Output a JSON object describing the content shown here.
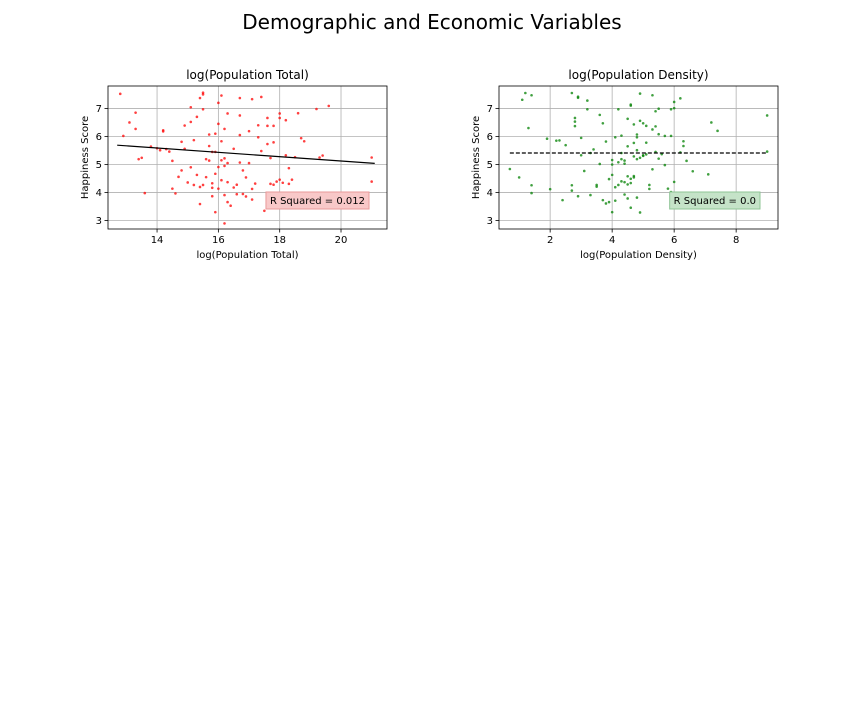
{
  "figure": {
    "title": "Demographic and Economic Variables"
  },
  "chart_data": [
    {
      "type": "scatter",
      "title": "log(Population Total)",
      "xlabel": "log(Population Total)",
      "ylabel": "Happiness Score",
      "xlim": [
        12.4,
        21.5
      ],
      "ylim": [
        2.7,
        7.8
      ],
      "xticks": [
        14,
        16,
        18,
        20
      ],
      "yticks": [
        3,
        4,
        5,
        6,
        7
      ],
      "grid": true,
      "point_color": "#ff0000",
      "fit_style": "solid",
      "fit_line": {
        "x": [
          12.7,
          21.1
        ],
        "y": [
          5.69,
          5.04
        ]
      },
      "annotation": {
        "text": "R Squared = 0.012",
        "facecolor": "#f8c8c8",
        "edgecolor": "#e89a9a",
        "location": "lower-right"
      },
      "points": [
        [
          12.8,
          7.52
        ],
        [
          12.9,
          6.02
        ],
        [
          13.1,
          6.5
        ],
        [
          13.3,
          6.85
        ],
        [
          13.3,
          6.27
        ],
        [
          13.4,
          5.19
        ],
        [
          13.5,
          5.24
        ],
        [
          13.6,
          3.98
        ],
        [
          13.8,
          5.64
        ],
        [
          14.0,
          5.58
        ],
        [
          14.1,
          5.51
        ],
        [
          14.2,
          6.18
        ],
        [
          14.2,
          6.22
        ],
        [
          14.3,
          5.55
        ],
        [
          14.4,
          5.46
        ],
        [
          14.5,
          5.13
        ],
        [
          14.5,
          4.14
        ],
        [
          14.6,
          3.97
        ],
        [
          14.7,
          4.56
        ],
        [
          14.8,
          4.79
        ],
        [
          14.8,
          5.81
        ],
        [
          14.9,
          6.39
        ],
        [
          14.9,
          5.56
        ],
        [
          15.0,
          4.36
        ],
        [
          15.1,
          4.9
        ],
        [
          15.1,
          7.04
        ],
        [
          15.1,
          6.52
        ],
        [
          15.2,
          4.27
        ],
        [
          15.2,
          5.87
        ],
        [
          15.3,
          6.7
        ],
        [
          15.3,
          4.63
        ],
        [
          15.4,
          4.2
        ],
        [
          15.4,
          3.59
        ],
        [
          15.4,
          7.37
        ],
        [
          15.5,
          7.5
        ],
        [
          15.5,
          7.56
        ],
        [
          15.5,
          6.97
        ],
        [
          15.5,
          4.27
        ],
        [
          15.6,
          4.55
        ],
        [
          15.6,
          5.19
        ],
        [
          15.7,
          5.66
        ],
        [
          15.7,
          6.07
        ],
        [
          15.7,
          5.14
        ],
        [
          15.8,
          3.87
        ],
        [
          15.8,
          4.33
        ],
        [
          15.8,
          5.45
        ],
        [
          15.8,
          4.17
        ],
        [
          15.9,
          6.1
        ],
        [
          15.9,
          4.67
        ],
        [
          15.9,
          5.45
        ],
        [
          15.9,
          3.3
        ],
        [
          16.0,
          7.2
        ],
        [
          16.0,
          6.45
        ],
        [
          16.0,
          4.91
        ],
        [
          16.0,
          4.14
        ],
        [
          16.1,
          7.46
        ],
        [
          16.1,
          5.83
        ],
        [
          16.1,
          5.15
        ],
        [
          16.1,
          4.44
        ],
        [
          16.2,
          6.27
        ],
        [
          16.2,
          5.22
        ],
        [
          16.2,
          4.95
        ],
        [
          16.2,
          3.91
        ],
        [
          16.2,
          2.9
        ],
        [
          16.3,
          6.82
        ],
        [
          16.3,
          5.05
        ],
        [
          16.3,
          4.37
        ],
        [
          16.3,
          3.66
        ],
        [
          16.4,
          3.53
        ],
        [
          16.5,
          5.56
        ],
        [
          16.5,
          4.18
        ],
        [
          16.6,
          4.28
        ],
        [
          16.6,
          3.94
        ],
        [
          16.7,
          5.07
        ],
        [
          16.7,
          6.75
        ],
        [
          16.7,
          7.37
        ],
        [
          16.7,
          6.05
        ],
        [
          16.8,
          4.79
        ],
        [
          16.8,
          3.95
        ],
        [
          16.9,
          4.54
        ],
        [
          16.9,
          3.86
        ],
        [
          17.0,
          6.19
        ],
        [
          17.0,
          5.05
        ],
        [
          17.1,
          7.33
        ],
        [
          17.1,
          4.13
        ],
        [
          17.1,
          3.75
        ],
        [
          17.2,
          4.32
        ],
        [
          17.3,
          6.4
        ],
        [
          17.3,
          5.97
        ],
        [
          17.4,
          7.41
        ],
        [
          17.4,
          5.48
        ],
        [
          17.5,
          3.35
        ],
        [
          17.6,
          6.38
        ],
        [
          17.6,
          6.66
        ],
        [
          17.6,
          5.73
        ],
        [
          17.7,
          4.31
        ],
        [
          17.7,
          5.23
        ],
        [
          17.8,
          4.28
        ],
        [
          17.8,
          6.38
        ],
        [
          17.8,
          5.79
        ],
        [
          17.9,
          4.39
        ],
        [
          18.0,
          4.46
        ],
        [
          18.0,
          6.82
        ],
        [
          18.0,
          6.66
        ],
        [
          18.1,
          4.35
        ],
        [
          18.2,
          6.58
        ],
        [
          18.2,
          5.33
        ],
        [
          18.3,
          4.31
        ],
        [
          18.3,
          4.87
        ],
        [
          18.4,
          4.46
        ],
        [
          18.5,
          5.26
        ],
        [
          18.6,
          6.83
        ],
        [
          18.7,
          5.94
        ],
        [
          18.8,
          5.83
        ],
        [
          19.2,
          6.98
        ],
        [
          19.3,
          5.25
        ],
        [
          19.4,
          5.32
        ],
        [
          19.6,
          7.09
        ],
        [
          21.0,
          5.25
        ],
        [
          21.0,
          4.39
        ]
      ]
    },
    {
      "type": "scatter",
      "title": "log(Population Density)",
      "xlabel": "log(Population Density)",
      "ylabel": "Happiness Score",
      "xlim": [
        0.35,
        9.35
      ],
      "ylim": [
        2.7,
        7.8
      ],
      "xticks": [
        2,
        4,
        6,
        8
      ],
      "yticks": [
        3,
        4,
        5,
        6,
        7
      ],
      "grid": true,
      "point_color": "#008000",
      "fit_style": "dashed",
      "fit_line": {
        "x": [
          0.7,
          9.0
        ],
        "y": [
          5.41,
          5.41
        ]
      },
      "annotation": {
        "text": "R Squared = 0.0",
        "facecolor": "#c5e3c8",
        "edgecolor": "#8fc496",
        "location": "lower-right"
      },
      "points": [
        [
          0.7,
          4.84
        ],
        [
          1.0,
          4.54
        ],
        [
          1.1,
          7.31
        ],
        [
          1.2,
          7.55
        ],
        [
          1.3,
          6.3
        ],
        [
          1.4,
          7.47
        ],
        [
          1.4,
          4.26
        ],
        [
          1.4,
          3.98
        ],
        [
          1.9,
          5.92
        ],
        [
          2.0,
          4.12
        ],
        [
          2.2,
          5.85
        ],
        [
          2.3,
          5.86
        ],
        [
          2.4,
          3.73
        ],
        [
          2.5,
          5.69
        ],
        [
          2.7,
          7.55
        ],
        [
          2.7,
          4.07
        ],
        [
          2.7,
          4.26
        ],
        [
          2.8,
          6.53
        ],
        [
          2.8,
          6.37
        ],
        [
          2.8,
          6.66
        ],
        [
          2.9,
          7.42
        ],
        [
          2.9,
          3.87
        ],
        [
          2.9,
          7.38
        ],
        [
          3.0,
          5.95
        ],
        [
          3.0,
          5.33
        ],
        [
          3.1,
          4.77
        ],
        [
          3.2,
          6.97
        ],
        [
          3.2,
          7.28
        ],
        [
          3.3,
          3.91
        ],
        [
          3.3,
          5.41
        ],
        [
          3.4,
          5.54
        ],
        [
          3.5,
          4.27
        ],
        [
          3.5,
          4.21
        ],
        [
          3.6,
          6.77
        ],
        [
          3.6,
          5.02
        ],
        [
          3.7,
          3.73
        ],
        [
          3.7,
          6.47
        ],
        [
          3.8,
          5.82
        ],
        [
          3.8,
          3.61
        ],
        [
          3.9,
          4.48
        ],
        [
          3.9,
          3.66
        ],
        [
          4.0,
          5.16
        ],
        [
          4.0,
          3.3
        ],
        [
          4.0,
          4.63
        ],
        [
          4.0,
          5.0
        ],
        [
          4.1,
          4.19
        ],
        [
          4.1,
          3.71
        ],
        [
          4.1,
          5.97
        ],
        [
          4.2,
          4.27
        ],
        [
          4.2,
          6.97
        ],
        [
          4.2,
          5.08
        ],
        [
          4.3,
          5.41
        ],
        [
          4.3,
          5.19
        ],
        [
          4.3,
          6.03
        ],
        [
          4.3,
          4.4
        ],
        [
          4.4,
          5.14
        ],
        [
          4.4,
          4.37
        ],
        [
          4.4,
          3.93
        ],
        [
          4.4,
          5.03
        ],
        [
          4.5,
          4.58
        ],
        [
          4.5,
          4.29
        ],
        [
          4.5,
          6.63
        ],
        [
          4.5,
          3.79
        ],
        [
          4.5,
          5.65
        ],
        [
          4.6,
          7.1
        ],
        [
          4.6,
          7.14
        ],
        [
          4.6,
          4.34
        ],
        [
          4.6,
          4.49
        ],
        [
          4.6,
          3.46
        ],
        [
          4.7,
          5.77
        ],
        [
          4.7,
          5.29
        ],
        [
          4.7,
          4.59
        ],
        [
          4.7,
          4.54
        ],
        [
          4.7,
          6.43
        ],
        [
          4.8,
          5.19
        ],
        [
          4.8,
          5.51
        ],
        [
          4.8,
          6.07
        ],
        [
          4.8,
          5.97
        ],
        [
          4.8,
          3.82
        ],
        [
          4.9,
          6.56
        ],
        [
          4.9,
          7.53
        ],
        [
          4.9,
          5.24
        ],
        [
          4.9,
          3.29
        ],
        [
          5.0,
          6.47
        ],
        [
          5.0,
          5.33
        ],
        [
          5.0,
          5.31
        ],
        [
          5.1,
          5.36
        ],
        [
          5.1,
          5.78
        ],
        [
          5.1,
          6.38
        ],
        [
          5.2,
          4.27
        ],
        [
          5.2,
          4.13
        ],
        [
          5.3,
          4.83
        ],
        [
          5.3,
          6.25
        ],
        [
          5.3,
          7.47
        ],
        [
          5.4,
          6.36
        ],
        [
          5.4,
          6.9
        ],
        [
          5.4,
          5.45
        ],
        [
          5.5,
          6.99
        ],
        [
          5.5,
          6.08
        ],
        [
          5.5,
          5.21
        ],
        [
          5.6,
          5.37
        ],
        [
          5.7,
          6.02
        ],
        [
          5.7,
          4.98
        ],
        [
          5.8,
          4.14
        ],
        [
          5.9,
          6.97
        ],
        [
          5.9,
          6.02
        ],
        [
          5.9,
          4.02
        ],
        [
          6.0,
          7.01
        ],
        [
          6.0,
          7.23
        ],
        [
          6.0,
          3.64
        ],
        [
          6.0,
          4.38
        ],
        [
          6.1,
          3.61
        ],
        [
          6.2,
          7.36
        ],
        [
          6.2,
          5.43
        ],
        [
          6.3,
          5.83
        ],
        [
          6.3,
          5.66
        ],
        [
          6.4,
          5.13
        ],
        [
          6.6,
          4.76
        ],
        [
          7.1,
          4.65
        ],
        [
          7.2,
          6.5
        ],
        [
          7.4,
          6.2
        ],
        [
          9.0,
          5.46
        ],
        [
          9.0,
          6.75
        ]
      ]
    }
  ]
}
